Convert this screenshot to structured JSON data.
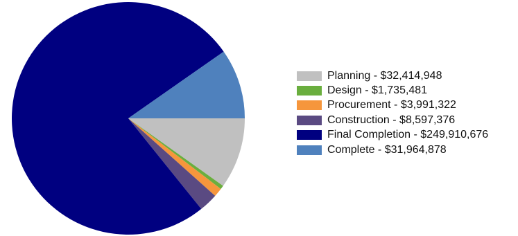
{
  "chart_data": {
    "type": "pie",
    "title": "",
    "legend_position": "right",
    "start_angle_deg": 0,
    "direction": "clockwise",
    "slices": [
      {
        "label": "Planning - $32,414,948",
        "category": "Planning",
        "value": 32414948,
        "color": "#c0c0c0"
      },
      {
        "label": "Design - $1,735,481",
        "category": "Design",
        "value": 1735481,
        "color": "#6aae3e"
      },
      {
        "label": "Procurement - $3,991,322",
        "category": "Procurement",
        "value": 3991322,
        "color": "#f6963c"
      },
      {
        "label": "Construction - $8,597,376",
        "category": "Construction",
        "value": 8597376,
        "color": "#5a4a82"
      },
      {
        "label": "Final Completion - $249,910,676",
        "category": "Final Completion",
        "value": 249910676,
        "color": "#000080"
      },
      {
        "label": "Complete - $31,964,878",
        "category": "Complete",
        "value": 31964878,
        "color": "#4f81bd"
      }
    ]
  }
}
